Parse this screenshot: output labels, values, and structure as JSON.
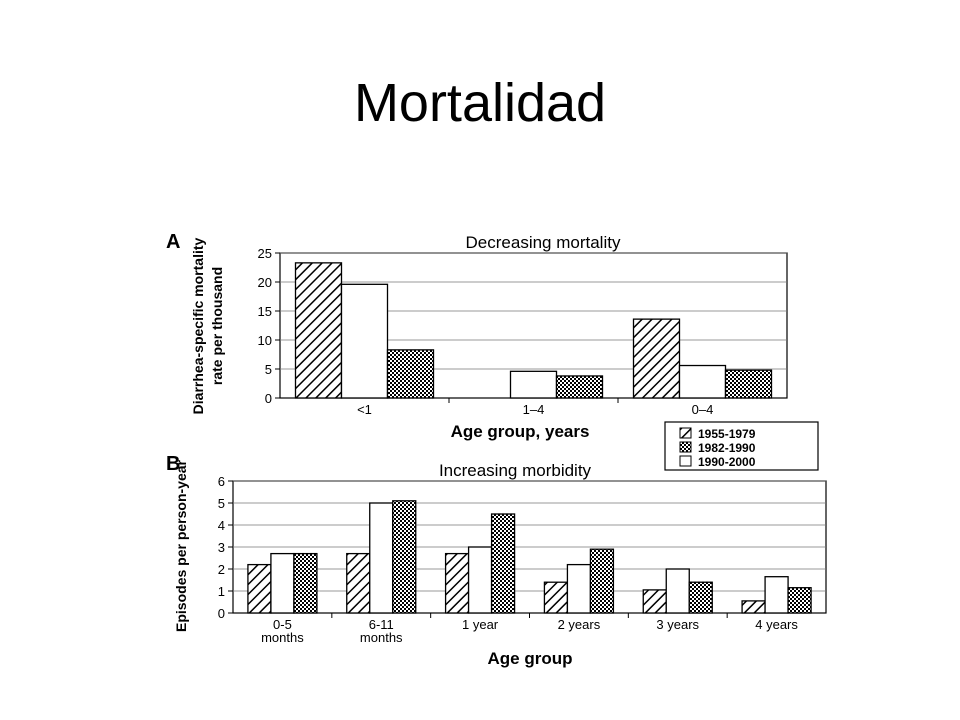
{
  "slide": {
    "title": "Mortalidad"
  },
  "legend": {
    "entries": [
      {
        "label": "1955-1979",
        "pattern": "hatch"
      },
      {
        "label": "1982-1990",
        "pattern": "dots"
      },
      {
        "label": "1990-2000",
        "pattern": "empty"
      }
    ]
  },
  "chart_data": [
    {
      "type": "bar",
      "panel_label": "A",
      "title": "Decreasing mortality",
      "ylabel": "Diarrhea-specific mortality rate per thousand",
      "xlabel": "Age group, years",
      "categories": [
        "<1",
        "1–4",
        "0–4"
      ],
      "ylim": [
        0,
        25
      ],
      "yticks": [
        0,
        5,
        10,
        15,
        20,
        25
      ],
      "grid": true,
      "series": [
        {
          "name": "1955-1979",
          "values": [
            23.3,
            null,
            13.6
          ]
        },
        {
          "name": "1982-1990",
          "values": [
            8.3,
            3.8,
            4.8
          ]
        },
        {
          "name": "1990-2000",
          "values": [
            19.6,
            4.6,
            5.6
          ]
        }
      ],
      "bar_order": [
        "1955-1979",
        "1990-2000",
        "1982-1990"
      ]
    },
    {
      "type": "bar",
      "panel_label": "B",
      "title": "Increasing morbidity",
      "ylabel": "Episodes per person-year",
      "xlabel": "Age group",
      "categories": [
        "0-5 months",
        "6-11 months",
        "1 year",
        "2 years",
        "3 years",
        "4 years"
      ],
      "category_lines": [
        [
          "0-5",
          "months"
        ],
        [
          "6-11",
          "months"
        ],
        [
          "1 year"
        ],
        [
          "2 years"
        ],
        [
          "3 years"
        ],
        [
          "4 years"
        ]
      ],
      "ylim": [
        0,
        6
      ],
      "yticks": [
        0,
        1,
        2,
        3,
        4,
        5,
        6
      ],
      "grid": true,
      "series": [
        {
          "name": "1955-1979",
          "values": [
            2.2,
            2.7,
            2.7,
            1.4,
            1.05,
            0.55
          ]
        },
        {
          "name": "1982-1990",
          "values": [
            2.7,
            5.1,
            4.5,
            2.9,
            1.4,
            1.15
          ]
        },
        {
          "name": "1990-2000",
          "values": [
            2.7,
            5.0,
            3.0,
            2.2,
            2.0,
            1.65
          ]
        }
      ],
      "bar_order": [
        "1955-1979",
        "1990-2000",
        "1982-1990"
      ]
    }
  ]
}
